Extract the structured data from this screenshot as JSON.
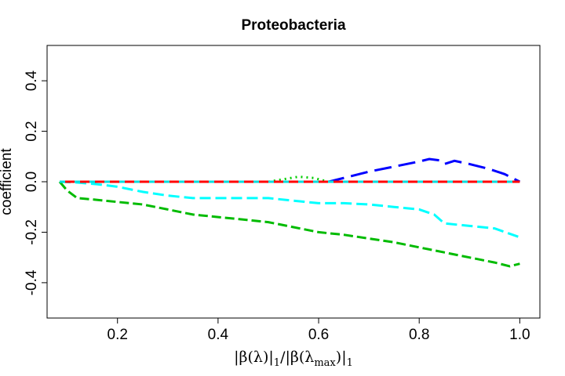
{
  "chart_data": {
    "type": "line",
    "title": "Proteobacteria",
    "xlabel": "|β(λ)|1/|β(λmax)|1",
    "xlabel_parts": {
      "bar1": "|",
      "beta1": "β(λ)",
      "bar2": "|",
      "sub1": "1",
      "slash": "/",
      "bar3": "|",
      "beta2": "β(λ",
      "sub_max": "max",
      "close2": ")",
      "bar4": "|",
      "sub2": "1"
    },
    "ylabel": "coefficient",
    "xlim": [
      0.06,
      1.04
    ],
    "ylim": [
      -0.54,
      0.54
    ],
    "xticks": [
      0.2,
      0.4,
      0.6,
      0.8,
      1.0
    ],
    "xtick_labels": [
      "0.2",
      "0.4",
      "0.6",
      "0.8",
      "1.0"
    ],
    "yticks": [
      -0.4,
      -0.2,
      0.0,
      0.2,
      0.4
    ],
    "ytick_labels": [
      "-0.4",
      "-0.2",
      "0.0",
      "0.2",
      "0.4"
    ],
    "grid": false,
    "series": [
      {
        "color": "#000000",
        "dash": "3,4",
        "x": [
          0.085,
          1.0
        ],
        "y": [
          0.0,
          0.0
        ]
      },
      {
        "color": "#00CD00",
        "dash": "2,5",
        "x": [
          0.085,
          0.5,
          0.53,
          0.56,
          0.59,
          0.62,
          1.0
        ],
        "y": [
          0.0,
          0.0,
          0.01,
          0.02,
          0.015,
          0.0,
          0.0
        ]
      },
      {
        "color": "#0000FF",
        "dash": "22,9",
        "x": [
          0.085,
          0.62,
          0.66,
          0.7,
          0.75,
          0.8,
          0.82,
          0.84,
          0.85,
          0.87,
          0.9,
          0.94,
          0.97,
          1.0
        ],
        "y": [
          0.0,
          0.0,
          0.02,
          0.04,
          0.06,
          0.08,
          0.09,
          0.085,
          0.07,
          0.083,
          0.07,
          0.05,
          0.03,
          0.0
        ]
      },
      {
        "color": "#00FFFF",
        "dash": "14,6",
        "x": [
          0.085,
          0.12,
          0.16,
          0.2,
          0.25,
          0.3,
          0.35,
          0.4,
          0.45,
          0.5,
          0.55,
          0.6,
          0.65,
          0.7,
          0.75,
          0.8,
          0.83,
          0.85,
          0.9,
          0.95,
          1.0
        ],
        "y": [
          0.0,
          -0.003,
          -0.01,
          -0.02,
          -0.04,
          -0.055,
          -0.065,
          -0.065,
          -0.065,
          -0.065,
          -0.075,
          -0.085,
          -0.085,
          -0.09,
          -0.1,
          -0.11,
          -0.13,
          -0.165,
          -0.175,
          -0.185,
          -0.22
        ]
      },
      {
        "color": "#00BB00",
        "dash": "12,5",
        "x": [
          0.085,
          0.1,
          0.12,
          0.15,
          0.2,
          0.25,
          0.3,
          0.35,
          0.4,
          0.45,
          0.5,
          0.55,
          0.6,
          0.65,
          0.7,
          0.75,
          0.8,
          0.85,
          0.9,
          0.95,
          0.98,
          1.0
        ],
        "y": [
          0.0,
          -0.035,
          -0.065,
          -0.07,
          -0.08,
          -0.09,
          -0.11,
          -0.13,
          -0.14,
          -0.15,
          -0.16,
          -0.18,
          -0.2,
          -0.21,
          -0.225,
          -0.24,
          -0.26,
          -0.28,
          -0.3,
          -0.32,
          -0.335,
          -0.325
        ]
      },
      {
        "color": "#FF00FF",
        "dash": "6,4",
        "x": [
          0.085,
          1.0
        ],
        "y": [
          0.0,
          0.0
        ]
      },
      {
        "color": "#FF0000",
        "dash": "",
        "x": [
          0.085,
          1.0
        ],
        "y": [
          0.0,
          0.0
        ]
      },
      {
        "color": "#00DDDD",
        "dash": "7,12",
        "x": [
          0.085,
          1.0
        ],
        "y": [
          0.0,
          0.0
        ]
      }
    ]
  }
}
